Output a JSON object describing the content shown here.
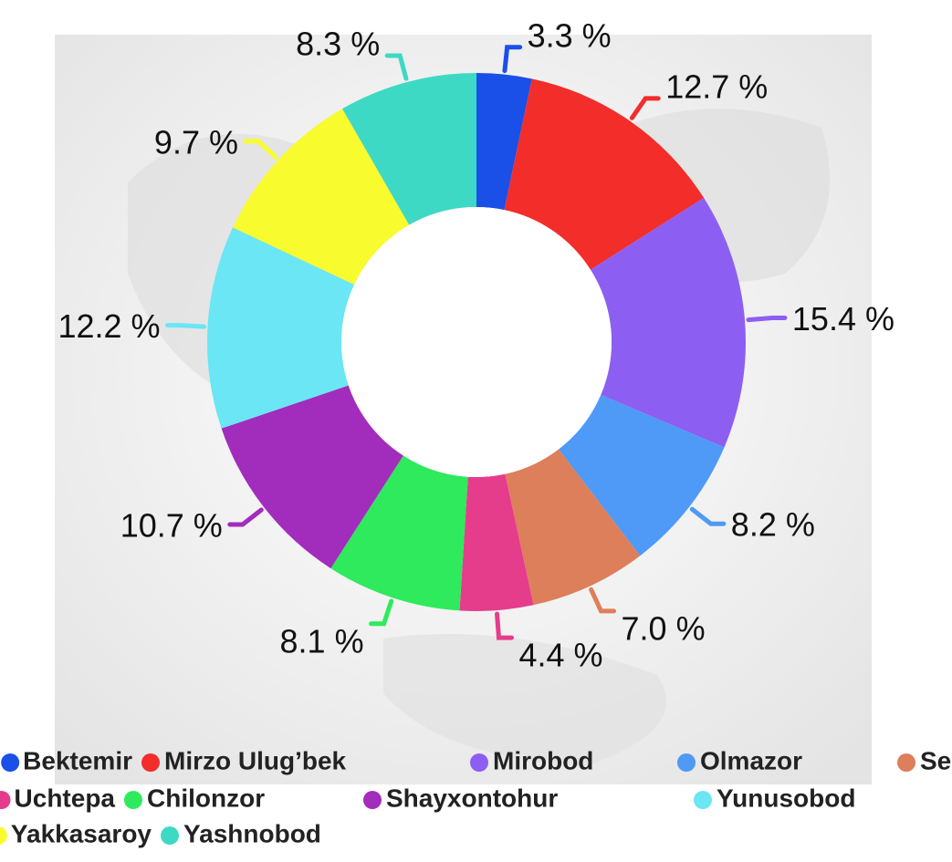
{
  "chart_data": {
    "type": "donut",
    "categories": [
      "Bektemir",
      "Mirzo Ulug’bek",
      "Mirobod",
      "Olmazor",
      "Sergeli",
      "Uchtepa",
      "Chilonzor",
      "Shayxontohur",
      "Yunusobod",
      "Yakkasaroy",
      "Yashnobod"
    ],
    "values": [
      3.3,
      12.7,
      15.4,
      8.2,
      7.0,
      4.4,
      8.1,
      10.7,
      12.2,
      9.7,
      8.3
    ],
    "value_labels": [
      "3.3 %",
      "12.7 %",
      "15.4 %",
      "8.2 %",
      "7.0 %",
      "4.4 %",
      "8.1 %",
      "10.7 %",
      "12.2 %",
      "9.7 %",
      "8.3 %"
    ],
    "colors": [
      "#1a4fe8",
      "#f22d2a",
      "#8c5ff2",
      "#4e9af6",
      "#dc7f5a",
      "#e63c8c",
      "#2eea5c",
      "#a22cbc",
      "#6ae6f4",
      "#f8fb2e",
      "#3ed9c4"
    ]
  }
}
